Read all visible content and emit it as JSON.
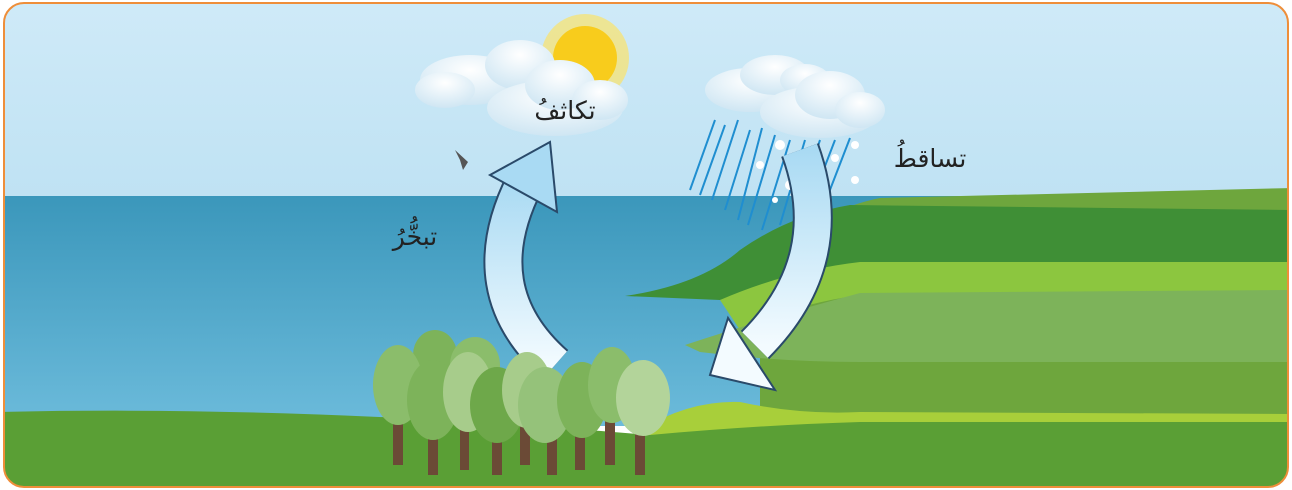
{
  "labels": {
    "condensation": "تكاثفُ",
    "evaporation": "تبخُّرُ",
    "precipitation": "تساقطُ"
  }
}
